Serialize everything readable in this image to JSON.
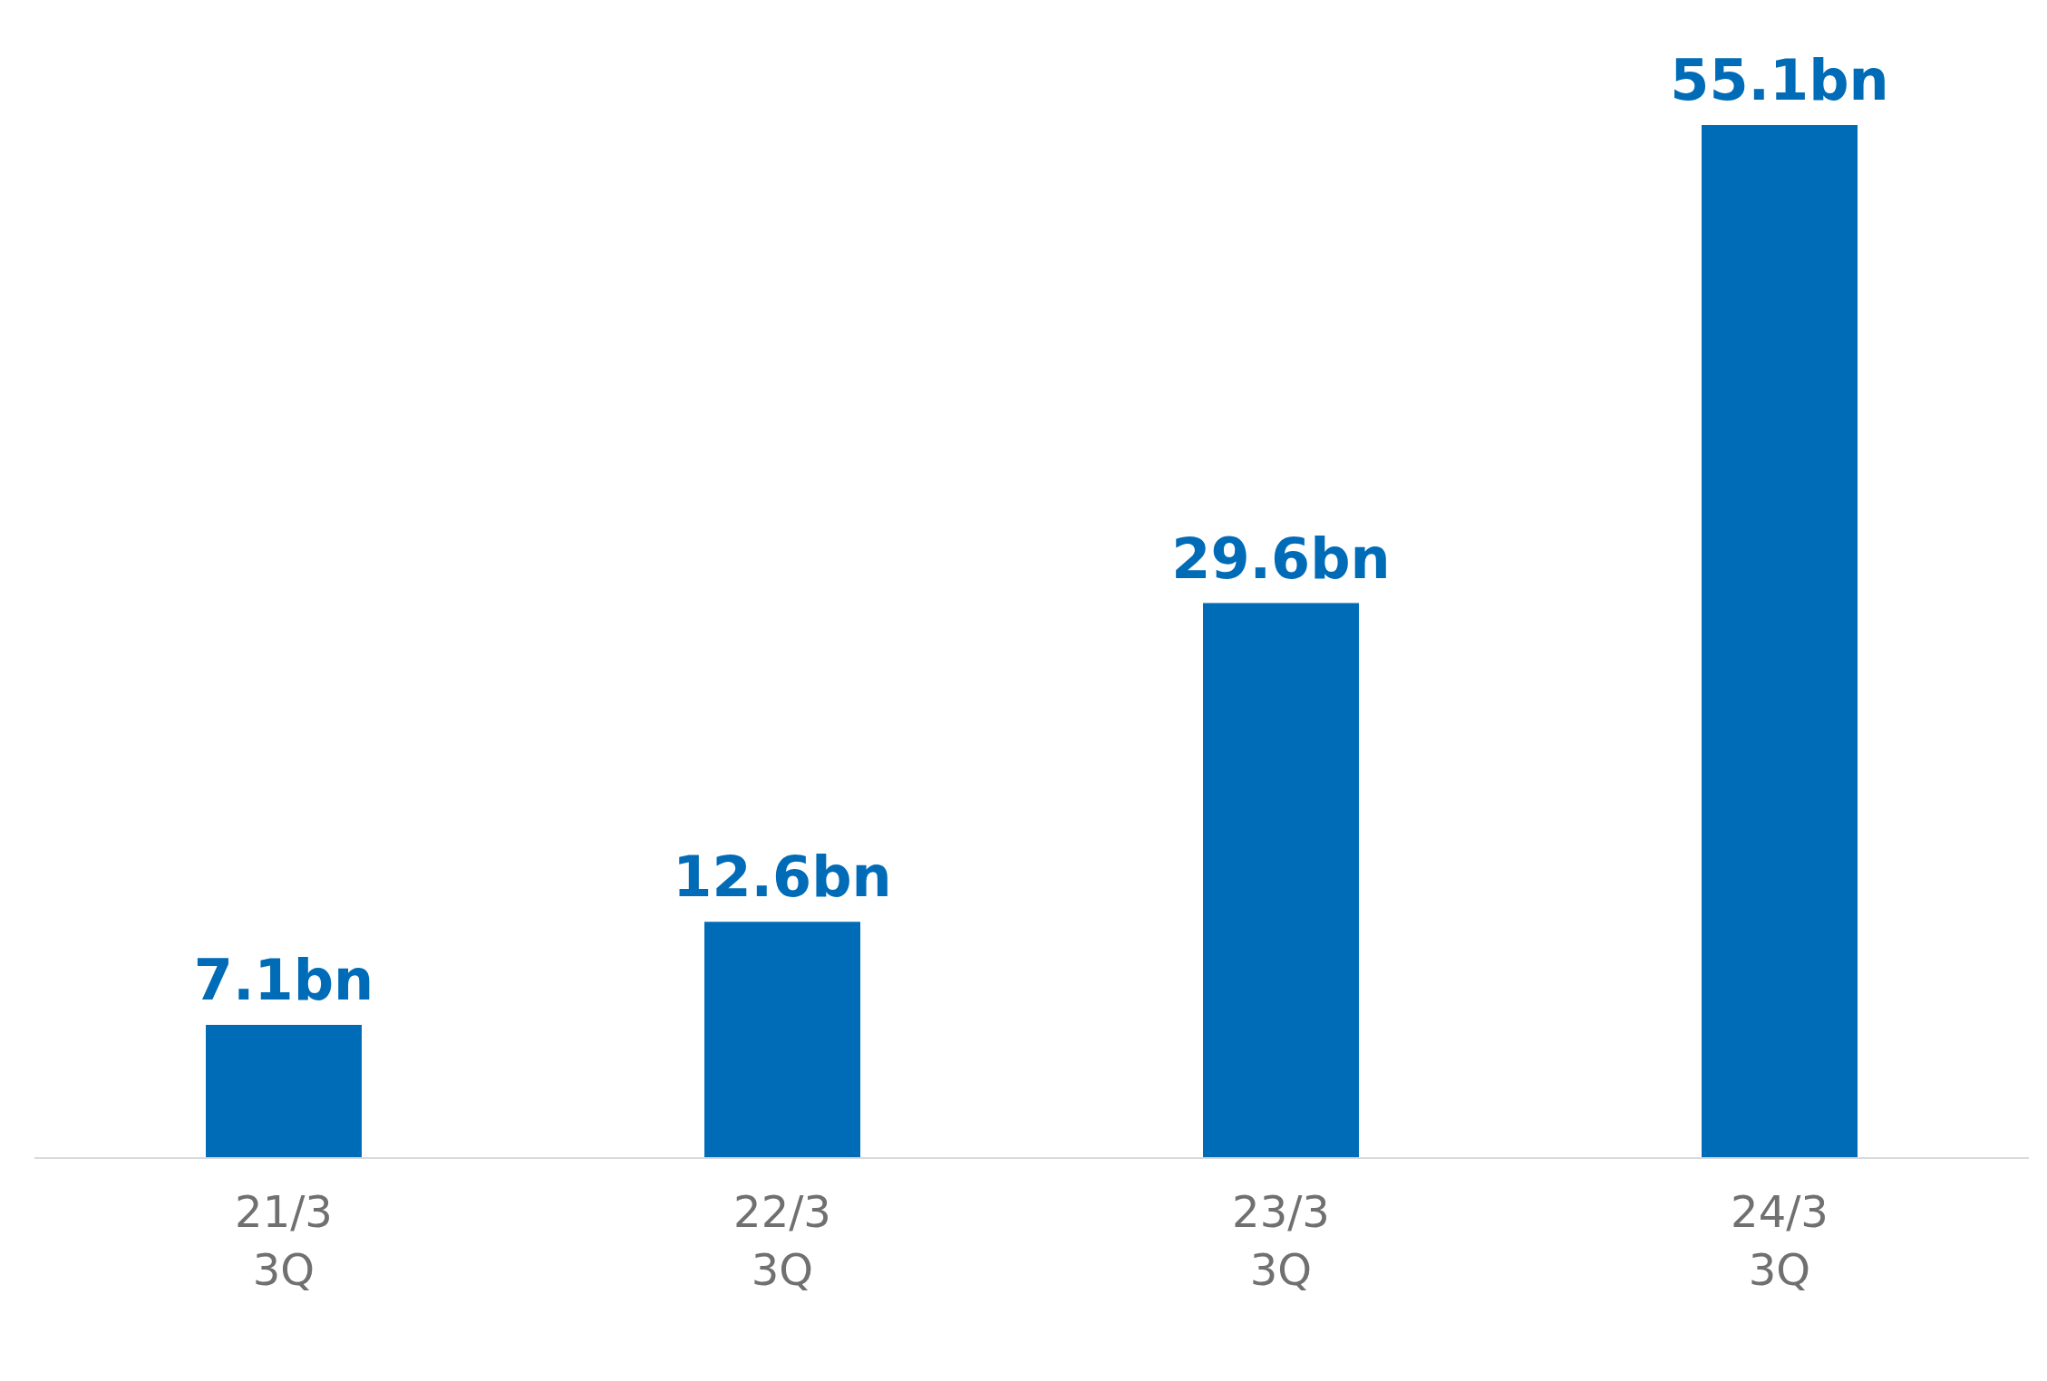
{
  "chart_data": {
    "type": "bar",
    "categories": [
      "21/3\n3Q",
      "22/3\n3Q",
      "23/3\n3Q",
      "24/3\n3Q"
    ],
    "values": [
      7.1,
      12.6,
      29.6,
      55.1
    ],
    "value_labels": [
      "7.1bn",
      "12.6bn",
      "29.6bn",
      "55.1bn"
    ],
    "color": "#006cb7",
    "grid": false,
    "legend": false
  }
}
